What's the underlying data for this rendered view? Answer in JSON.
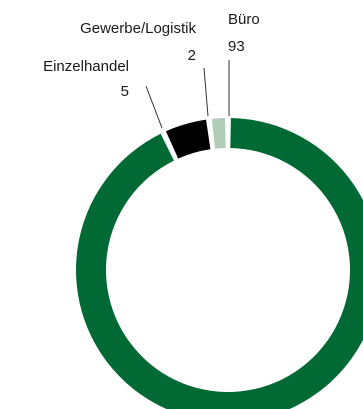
{
  "chart_data": {
    "type": "pie",
    "variant": "donut",
    "categories": [
      "Büro",
      "Einzelhandel",
      "Gewerbe/Logistik"
    ],
    "values": [
      93,
      5,
      2
    ],
    "colors": [
      "#006934",
      "#000000",
      "#b1ccb8"
    ],
    "title": "",
    "legend": "none"
  }
}
